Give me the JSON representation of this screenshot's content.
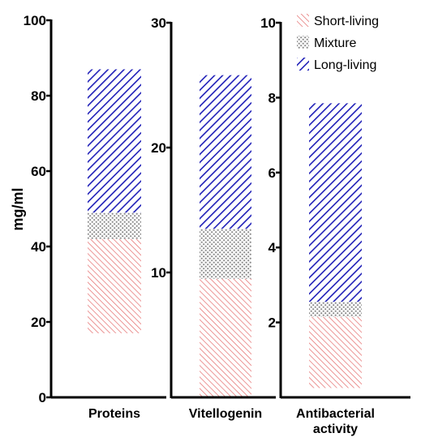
{
  "colors": {
    "short_living": "#e46a6a",
    "mixture": "#8a8a8a",
    "long_living": "#2020b8",
    "axis": "#000000"
  },
  "chart_data": [
    {
      "type": "bar",
      "stacked": true,
      "ylabel": "mg/ml",
      "ylim": [
        0,
        100
      ],
      "yticks": [
        "0",
        "20",
        "40",
        "60",
        "80",
        "100"
      ],
      "categories": [
        "Proteins"
      ],
      "segments": [
        {
          "name": "Short-living",
          "from": 17,
          "to": 42
        },
        {
          "name": "Mixture",
          "from": 42,
          "to": 49
        },
        {
          "name": "Long-living",
          "from": 49,
          "to": 87
        }
      ]
    },
    {
      "type": "bar",
      "stacked": true,
      "ylim": [
        0,
        30
      ],
      "yticks": [
        "10",
        "20",
        "30"
      ],
      "categories": [
        "Vitellogenin"
      ],
      "segments": [
        {
          "name": "Short-living",
          "from": 0,
          "to": 9.5
        },
        {
          "name": "Mixture",
          "from": 9.5,
          "to": 13.5
        },
        {
          "name": "Long-living",
          "from": 13.5,
          "to": 25.8
        }
      ]
    },
    {
      "type": "bar",
      "stacked": true,
      "ylim": [
        0,
        10
      ],
      "yticks": [
        "2",
        "4",
        "6",
        "8",
        "10"
      ],
      "categories": [
        "Antibacterial",
        "activity"
      ],
      "segments": [
        {
          "name": "Short-living",
          "from": 0.25,
          "to": 2.15
        },
        {
          "name": "Mixture",
          "from": 2.15,
          "to": 2.55
        },
        {
          "name": "Long-living",
          "from": 2.55,
          "to": 7.85
        }
      ]
    }
  ],
  "legend": {
    "placement": "top-right",
    "items": [
      "Short-living",
      "Mixture",
      "Long-living"
    ]
  }
}
